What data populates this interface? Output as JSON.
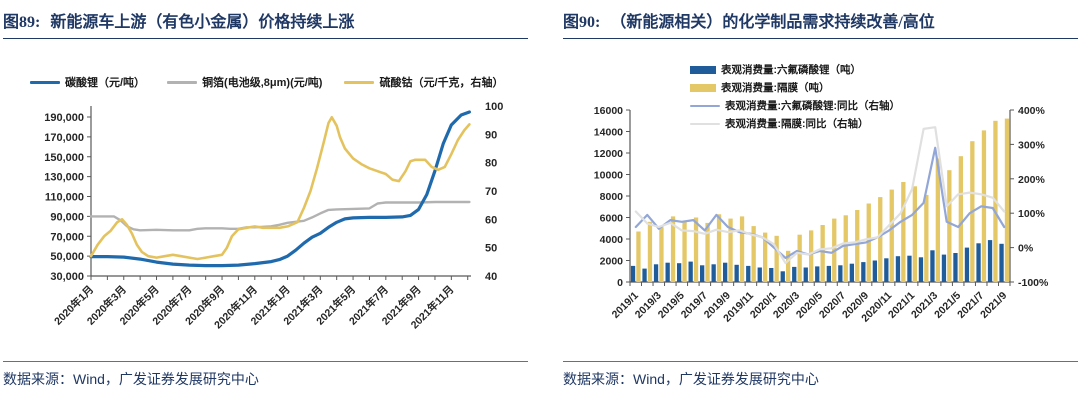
{
  "panels": [
    {
      "title_prefix": "图89:",
      "title": "新能源车上游（有色小金属）价格持续上涨",
      "source": "数据来源：Wind，广发证券发展研究中心"
    },
    {
      "title_prefix": "图90:",
      "title": "（新能源相关）的化学制品需求持续改善/高位",
      "source": "数据来源：Wind，广发证券发展研究中心"
    }
  ],
  "chart_data": [
    {
      "id": "fig89",
      "type": "line",
      "title": "新能源车上游（有色小金属）价格持续上涨",
      "x_domain": [
        0,
        23.2
      ],
      "x_months_total": 24,
      "x_tick_positions": [
        0,
        2,
        4,
        6,
        8,
        10,
        12,
        14,
        16,
        18,
        20,
        22
      ],
      "x_tick_labels": [
        "2020年1月",
        "2020年3月",
        "2020年5月",
        "2020年7月",
        "2020年9月",
        "2020年11月",
        "2021年1月",
        "2021年3月",
        "2021年5月",
        "2021年7月",
        "2021年9月",
        "2021年11月"
      ],
      "left_axis": {
        "min": 30000,
        "max": 190000,
        "tick_values": [
          190000,
          170000,
          150000,
          130000,
          110000,
          90000,
          70000,
          50000,
          30000
        ],
        "tick_labels": [
          "190,000",
          "170,000",
          "150,000",
          "130,000",
          "110,000",
          "90,000",
          "70,000",
          "50,000",
          "30,000"
        ]
      },
      "right_axis": {
        "min": 40,
        "max": 100,
        "tick_values": [
          100,
          90,
          80,
          70,
          60,
          50,
          40
        ],
        "tick_labels": [
          "100",
          "90",
          "80",
          "70",
          "60",
          "50",
          "40"
        ]
      },
      "series": [
        {
          "name": "铜箔(电池级,8μm)(元/吨)",
          "axis": "left",
          "color": "#b2b2b2",
          "width": 2.4,
          "points": [
            [
              0,
              90000
            ],
            [
              1,
              90000
            ],
            [
              1.4,
              90000
            ],
            [
              1.8,
              86000
            ],
            [
              2.2,
              80000
            ],
            [
              2.6,
              77000
            ],
            [
              3,
              76000
            ],
            [
              4,
              76500
            ],
            [
              5,
              76000
            ],
            [
              6,
              76000
            ],
            [
              6.5,
              77500
            ],
            [
              7,
              78000
            ],
            [
              8,
              78000
            ],
            [
              8.5,
              77500
            ],
            [
              9,
              77500
            ],
            [
              9.5,
              79000
            ],
            [
              10,
              79000
            ],
            [
              11,
              80000
            ],
            [
              11.5,
              81500
            ],
            [
              12,
              83500
            ],
            [
              13,
              85500
            ],
            [
              13.5,
              89000
            ],
            [
              14,
              93000
            ],
            [
              14.5,
              96500
            ],
            [
              15,
              97000
            ],
            [
              16,
              97500
            ],
            [
              17,
              98000
            ],
            [
              17.5,
              103000
            ],
            [
              18,
              104000
            ],
            [
              19,
              104000
            ],
            [
              20,
              104000
            ],
            [
              21,
              104500
            ],
            [
              22,
              104500
            ],
            [
              23.1,
              104500
            ]
          ]
        },
        {
          "name": "碳酸锂（元/吨）",
          "axis": "left",
          "color": "#1f6aad",
          "width": 3.2,
          "points": [
            [
              0,
              49500
            ],
            [
              1,
              49500
            ],
            [
              2,
              49000
            ],
            [
              3,
              47000
            ],
            [
              3.5,
              45500
            ],
            [
              4,
              44000
            ],
            [
              4.5,
              43000
            ],
            [
              5,
              42000
            ],
            [
              6,
              41000
            ],
            [
              7,
              40500
            ],
            [
              8,
              40500
            ],
            [
              9,
              41000
            ],
            [
              10,
              42500
            ],
            [
              11,
              44500
            ],
            [
              11.5,
              46500
            ],
            [
              12,
              50000
            ],
            [
              12.5,
              56000
            ],
            [
              13,
              63000
            ],
            [
              13.5,
              69000
            ],
            [
              14,
              73000
            ],
            [
              14.5,
              79000
            ],
            [
              15,
              84000
            ],
            [
              15.5,
              87500
            ],
            [
              16,
              88500
            ],
            [
              17,
              89000
            ],
            [
              18,
              89000
            ],
            [
              19,
              89500
            ],
            [
              19.5,
              91000
            ],
            [
              20,
              97000
            ],
            [
              20.5,
              112000
            ],
            [
              21,
              136000
            ],
            [
              21.5,
              163000
            ],
            [
              22,
              182000
            ],
            [
              22.6,
              192000
            ],
            [
              23.1,
              195000
            ]
          ]
        },
        {
          "name": "硫酸钴（元/千克，右轴）",
          "axis": "right",
          "color": "#e4c35f",
          "width": 2.6,
          "points": [
            [
              0,
              47
            ],
            [
              0.4,
              51
            ],
            [
              0.8,
              54
            ],
            [
              1.2,
              56
            ],
            [
              1.6,
              59
            ],
            [
              1.9,
              60
            ],
            [
              2.2,
              58
            ],
            [
              2.5,
              55
            ],
            [
              2.8,
              51
            ],
            [
              3.1,
              48.5
            ],
            [
              3.5,
              47
            ],
            [
              4,
              46.5
            ],
            [
              4.5,
              47
            ],
            [
              5,
              47.5
            ],
            [
              5.5,
              47
            ],
            [
              6,
              46.5
            ],
            [
              6.5,
              46
            ],
            [
              7,
              46.5
            ],
            [
              7.5,
              47
            ],
            [
              8,
              47.5
            ],
            [
              8.3,
              50
            ],
            [
              8.6,
              54
            ],
            [
              9,
              56.5
            ],
            [
              9.5,
              57
            ],
            [
              10,
              57.5
            ],
            [
              10.5,
              57
            ],
            [
              11,
              57
            ],
            [
              11.5,
              57
            ],
            [
              12,
              57.5
            ],
            [
              12.6,
              59
            ],
            [
              13,
              64
            ],
            [
              13.4,
              70
            ],
            [
              13.8,
              78
            ],
            [
              14.2,
              87
            ],
            [
              14.5,
              94
            ],
            [
              14.7,
              96
            ],
            [
              15,
              93
            ],
            [
              15.2,
              89
            ],
            [
              15.5,
              85
            ],
            [
              16,
              81.5
            ],
            [
              16.5,
              79.5
            ],
            [
              17,
              78
            ],
            [
              17.5,
              77
            ],
            [
              18,
              76
            ],
            [
              18.4,
              74
            ],
            [
              18.8,
              73.5
            ],
            [
              19.2,
              77
            ],
            [
              19.5,
              80.5
            ],
            [
              19.8,
              81
            ],
            [
              20.4,
              81
            ],
            [
              20.8,
              78.5
            ],
            [
              21.2,
              77.5
            ],
            [
              21.6,
              78.5
            ],
            [
              22,
              83
            ],
            [
              22.4,
              88
            ],
            [
              22.8,
              91.5
            ],
            [
              23.1,
              93.5
            ]
          ]
        }
      ],
      "legend_order": [
        "碳酸锂（元/吨）",
        "铜箔(电池级,8μm)(元/吨)",
        "硫酸钴（元/千克，右轴）"
      ]
    },
    {
      "id": "fig90",
      "type": "bar",
      "title": "（新能源相关）的化学制品需求持续改善/高位",
      "categories": [
        "2019/1",
        "2019/2",
        "2019/3",
        "2019/4",
        "2019/5",
        "2019/6",
        "2019/7",
        "2019/8",
        "2019/9",
        "2019/10",
        "2019/11",
        "2019/12",
        "2020/1",
        "2020/2",
        "2020/3",
        "2020/4",
        "2020/5",
        "2020/6",
        "2020/7",
        "2020/8",
        "2020/9",
        "2020/10",
        "2020/11",
        "2020/12",
        "2021/1",
        "2021/2",
        "2021/3",
        "2021/4",
        "2021/5",
        "2021/6",
        "2021/7",
        "2021/8",
        "2021/9"
      ],
      "x_tick_positions": [
        0,
        2,
        4,
        6,
        8,
        10,
        12,
        14,
        16,
        18,
        20,
        22,
        24,
        26,
        28,
        30,
        32
      ],
      "x_tick_labels": [
        "2019/1",
        "2019/3",
        "2019/5",
        "2019/7",
        "2019/9",
        "2019/11",
        "2020/1",
        "2020/3",
        "2020/5",
        "2020/7",
        "2020/9",
        "2020/11",
        "2021/1",
        "2021/3",
        "2021/5",
        "2021/7",
        "2021/9"
      ],
      "left_axis": {
        "min": 0,
        "max": 16000,
        "tick_values": [
          16000,
          14000,
          12000,
          10000,
          8000,
          6000,
          4000,
          2000,
          0
        ],
        "tick_labels": [
          "16000",
          "14000",
          "12000",
          "10000",
          "8000",
          "6000",
          "4000",
          "2000",
          "0"
        ]
      },
      "right_axis": {
        "min": -100,
        "max": 400,
        "tick_values": [
          400,
          300,
          200,
          100,
          0,
          -100
        ],
        "tick_labels": [
          "400%",
          "300%",
          "200%",
          "100%",
          "0%",
          "-100%"
        ]
      },
      "bar_series": [
        {
          "name": "表观消费量:六氟磷酸锂（吨）",
          "color": "#1f5c99",
          "values": [
            1500,
            1250,
            1650,
            1800,
            1750,
            1900,
            1550,
            1650,
            1800,
            1600,
            1500,
            1350,
            1300,
            1000,
            1400,
            1350,
            1450,
            1500,
            1550,
            1700,
            1850,
            2000,
            2200,
            2400,
            2450,
            2300,
            2950,
            2550,
            2700,
            3200,
            3600,
            3900,
            3550
          ]
        },
        {
          "name": "表观消费量:隔膜（吨）",
          "color": "#e4c766",
          "values": [
            4700,
            5600,
            5100,
            6100,
            5600,
            6000,
            5500,
            6300,
            5900,
            6100,
            5200,
            4600,
            4300,
            2900,
            4400,
            4800,
            5300,
            5900,
            6200,
            6700,
            7300,
            7900,
            8600,
            9300,
            8900,
            8100,
            11500,
            10400,
            11700,
            13100,
            14100,
            15000,
            15200
          ]
        }
      ],
      "line_series": [
        {
          "name": "表观消费量:六氟磷酸锂:同比（右轴）",
          "color": "#92a7d7",
          "width": 2.2,
          "values": [
            60,
            95,
            55,
            80,
            75,
            80,
            50,
            95,
            60,
            45,
            40,
            30,
            0,
            -30,
            -10,
            -20,
            -10,
            -15,
            5,
            10,
            15,
            30,
            50,
            75,
            95,
            130,
            290,
            75,
            60,
            100,
            120,
            115,
            60
          ]
        },
        {
          "name": "表观消费量:隔膜:同比（右轴）",
          "color": "#e0e0e0",
          "width": 2.2,
          "values": [
            105,
            70,
            60,
            72,
            50,
            48,
            40,
            52,
            45,
            50,
            38,
            30,
            10,
            -45,
            -15,
            -20,
            -5,
            -2,
            12,
            15,
            24,
            30,
            65,
            100,
            170,
            345,
            350,
            120,
            155,
            160,
            155,
            145,
            105
          ]
        }
      ]
    }
  ]
}
